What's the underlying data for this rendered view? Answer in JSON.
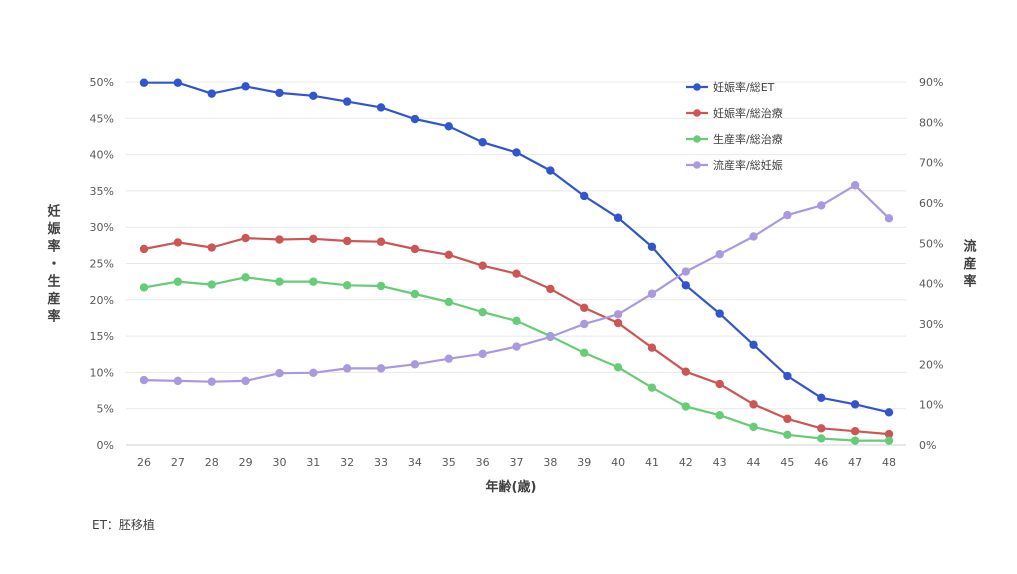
{
  "chart_data": {
    "type": "line",
    "xlabel": "年齢(歳)",
    "ylabel_left": "妊娠率・生産率",
    "ylabel_right": "流産率",
    "ylim_left": [
      0,
      50
    ],
    "ylim_right": [
      0,
      90
    ],
    "left_ticks": [
      "0%",
      "5%",
      "10%",
      "15%",
      "20%",
      "25%",
      "30%",
      "35%",
      "40%",
      "45%",
      "50%"
    ],
    "right_ticks": [
      "0%",
      "10%",
      "20%",
      "30%",
      "40%",
      "50%",
      "60%",
      "70%",
      "80%",
      "90%"
    ],
    "categories": [
      "26",
      "27",
      "28",
      "29",
      "30",
      "31",
      "32",
      "33",
      "34",
      "35",
      "36",
      "37",
      "38",
      "39",
      "40",
      "41",
      "42",
      "43",
      "44",
      "45",
      "46",
      "47",
      "48"
    ],
    "grid": true,
    "legend_position": "top-right",
    "series": [
      {
        "name": "妊娠率/総ET",
        "axis": "left",
        "color": "#3355cc",
        "values": [
          49.9,
          49.9,
          48.4,
          49.4,
          48.5,
          48.1,
          47.3,
          46.5,
          44.9,
          43.9,
          41.7,
          40.3,
          37.8,
          34.3,
          31.3,
          27.3,
          22.0,
          18.1,
          13.8,
          9.5,
          6.5,
          5.6,
          4.5
        ]
      },
      {
        "name": "妊娠率/総治療",
        "axis": "left",
        "color": "#cc5555",
        "values": [
          27.0,
          27.9,
          27.2,
          28.5,
          28.3,
          28.4,
          28.1,
          28.0,
          27.0,
          26.2,
          24.7,
          23.6,
          21.5,
          18.9,
          16.8,
          13.4,
          10.1,
          8.4,
          5.6,
          3.6,
          2.3,
          1.9,
          1.5
        ]
      },
      {
        "name": "生産率/総治療",
        "axis": "left",
        "color": "#66cc77",
        "values": [
          21.7,
          22.5,
          22.1,
          23.1,
          22.5,
          22.5,
          22.0,
          21.9,
          20.8,
          19.7,
          18.3,
          17.1,
          15.0,
          12.7,
          10.7,
          7.9,
          5.3,
          4.1,
          2.5,
          1.4,
          0.9,
          0.6,
          0.6
        ]
      },
      {
        "name": "流産率/総妊娠",
        "axis": "right",
        "color": "#aa99dd",
        "values": [
          16.1,
          15.9,
          15.7,
          15.9,
          17.8,
          17.9,
          19.0,
          19.0,
          20.0,
          21.4,
          22.6,
          24.4,
          26.8,
          30.0,
          32.4,
          37.5,
          43.0,
          47.3,
          51.7,
          57.0,
          59.4,
          64.4,
          56.2
        ]
      }
    ]
  },
  "footnote": "ET：胚移植"
}
